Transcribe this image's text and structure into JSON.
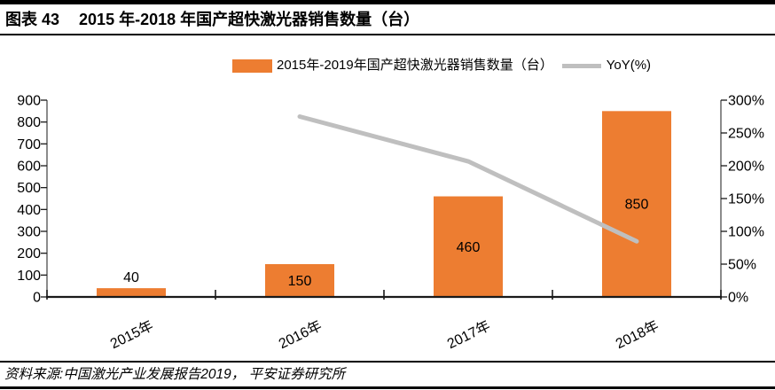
{
  "header": {
    "figure_label": "图表 43",
    "title": "2015 年-2018 年国产超快激光器销售数量（台）"
  },
  "legend": {
    "bar_label": "2015年-2019年国产超快激光器销售数量（台）",
    "line_label": "YoY(%)"
  },
  "colors": {
    "bar": "#ED7D31",
    "line": "#BFBFBF",
    "side_axis": "#4d4d4d",
    "bottom_axis": "#1a1a1a",
    "text": "#000000"
  },
  "chart_data": {
    "type": "bar",
    "combo": "bar+line",
    "title": "2015 年-2018 年国产超快激光器销售数量（台）",
    "categories": [
      "2015年",
      "2016年",
      "2017年",
      "2018年"
    ],
    "series": [
      {
        "name": "2015年-2019年国产超快激光器销售数量（台）",
        "type": "bar",
        "axis": "left",
        "color": "#ED7D31",
        "values": [
          40,
          150,
          460,
          850
        ],
        "data_labels": [
          "40",
          "150",
          "460",
          "850"
        ]
      },
      {
        "name": "YoY(%)",
        "type": "line",
        "axis": "right",
        "color": "#BFBFBF",
        "unit": "%",
        "values": [
          null,
          275,
          206.7,
          84.8
        ]
      }
    ],
    "left_axis": {
      "min": 0,
      "max": 900,
      "step": 100,
      "tick_labels": [
        "900",
        "800",
        "700",
        "600",
        "500",
        "400",
        "300",
        "200",
        "100",
        "0"
      ]
    },
    "right_axis": {
      "min": 0,
      "max": 300,
      "step": 50,
      "unit": "%",
      "tick_labels": [
        "300%",
        "250%",
        "200%",
        "150%",
        "100%",
        "50%",
        "0%"
      ]
    },
    "grid": false,
    "legend_position": "top",
    "x_label_rotation_deg": -26
  },
  "footer": {
    "source": "资料来源:中国激光产业发展报告2019， 平安证券研究所"
  }
}
